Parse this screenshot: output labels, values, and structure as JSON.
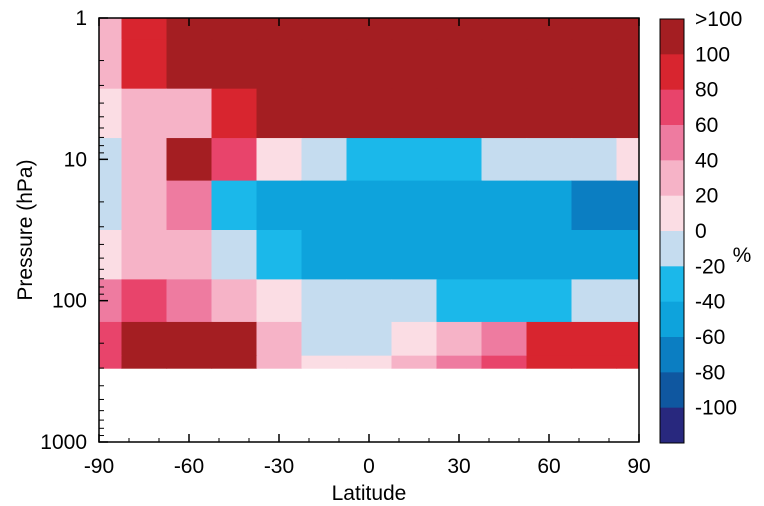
{
  "chart_data": {
    "type": "heatmap",
    "title": "",
    "xlabel": "Latitude",
    "ylabel": "Pressure (hPa)",
    "xlim": [
      -90,
      90
    ],
    "ylim": [
      1000,
      1
    ],
    "y_scale": "log",
    "y_inverted": true,
    "grid": false,
    "x_ticks": [
      -90,
      -60,
      -30,
      0,
      30,
      60,
      90
    ],
    "x_tick_labels": [
      "-90",
      "-60",
      "-30",
      "0",
      "30",
      "60",
      "90"
    ],
    "y_ticks": [
      1,
      10,
      100,
      1000
    ],
    "y_tick_labels": [
      "1",
      "10",
      "100",
      "1000"
    ],
    "colorbar": {
      "placement": "right",
      "unit": "%",
      "levels": [
        {
          "label": "-100",
          "color": "#28287e"
        },
        {
          "label": "-80",
          "color": "#0f57a0"
        },
        {
          "label": "-60",
          "color": "#0b7ec2"
        },
        {
          "label": "-40",
          "color": "#0ea3dc"
        },
        {
          "label": "-20",
          "color": "#1bb8ea"
        },
        {
          "label": "0",
          "color": "#c5dcef"
        },
        {
          "label": "20",
          "color": "#fbdde4"
        },
        {
          "label": "40",
          "color": "#f6b3c7"
        },
        {
          "label": "60",
          "color": "#ee7ba0"
        },
        {
          "label": "80",
          "color": "#e8446b"
        },
        {
          "label": "100",
          "color": "#d8252f"
        },
        {
          "label": ">100",
          "color": "#a41e22"
        }
      ]
    },
    "latitudes": [
      -90,
      -75,
      -60,
      -45,
      -30,
      -15,
      0,
      15,
      30,
      45,
      60,
      75,
      90
    ],
    "pressures": [
      1,
      2,
      5,
      10,
      20,
      50,
      100,
      200,
      300
    ],
    "values": [
      [
        30,
        100,
        150,
        150,
        150,
        150,
        150,
        150,
        150,
        150,
        150,
        150,
        150
      ],
      [
        20,
        100,
        150,
        150,
        150,
        150,
        150,
        150,
        150,
        150,
        150,
        150,
        150
      ],
      [
        10,
        20,
        30,
        80,
        150,
        150,
        150,
        150,
        150,
        150,
        150,
        150,
        150
      ],
      [
        -10,
        20,
        150,
        60,
        10,
        -10,
        -30,
        -30,
        -30,
        -20,
        -10,
        -10,
        10
      ],
      [
        -10,
        20,
        40,
        -40,
        -50,
        -60,
        -60,
        -60,
        -60,
        -60,
        -60,
        -70,
        -70
      ],
      [
        10,
        20,
        20,
        -10,
        -40,
        -50,
        -50,
        -50,
        -50,
        -50,
        -50,
        -60,
        -60
      ],
      [
        40,
        60,
        40,
        30,
        10,
        -10,
        -20,
        -20,
        -30,
        -30,
        -30,
        -20,
        -20
      ],
      [
        60,
        150,
        150,
        150,
        20,
        -20,
        -10,
        10,
        20,
        40,
        80,
        80,
        80
      ],
      [
        60,
        150,
        150,
        150,
        20,
        0,
        10,
        20,
        40,
        60,
        80,
        80,
        80
      ]
    ],
    "missing_region": {
      "pressure_max": 1000,
      "pressure_min": 300,
      "note": ""
    }
  }
}
